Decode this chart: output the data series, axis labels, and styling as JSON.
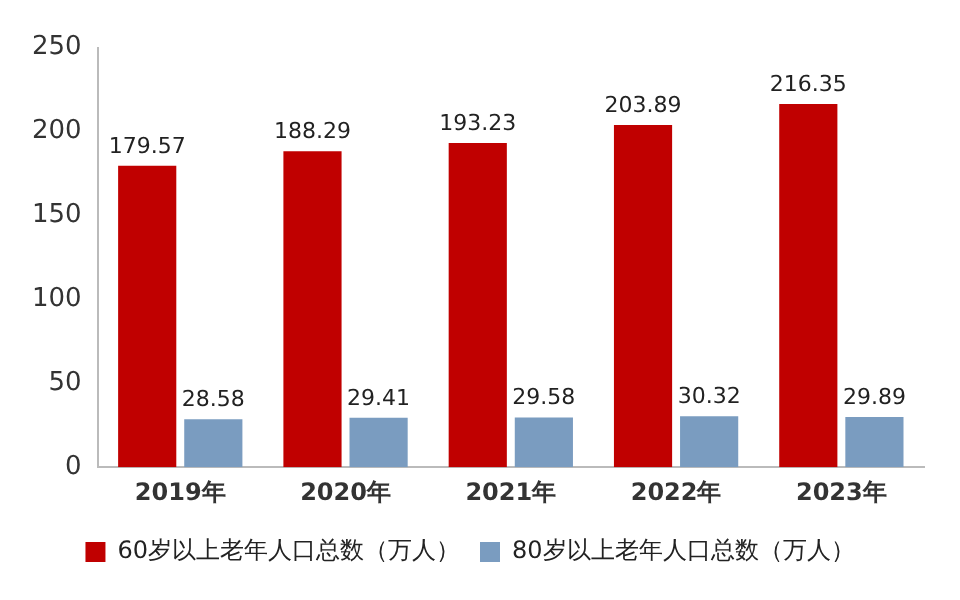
{
  "chart_data": {
    "type": "bar",
    "categories": [
      "2019年",
      "2020年",
      "2021年",
      "2022年",
      "2023年"
    ],
    "series": [
      {
        "name": "60岁以上老年人口总数（万人）",
        "color": "#c00000",
        "values": [
          179.57,
          188.29,
          193.23,
          203.89,
          216.35
        ]
      },
      {
        "name": "80岁以上老年人口总数（万人）",
        "color": "#7a9cc0",
        "values": [
          28.58,
          29.41,
          29.58,
          30.32,
          29.89
        ]
      }
    ],
    "ylim": [
      0,
      250
    ],
    "yticks": [
      0,
      50,
      100,
      150,
      200,
      250
    ],
    "grid": false,
    "legend": "bottom",
    "data_labels": true
  }
}
